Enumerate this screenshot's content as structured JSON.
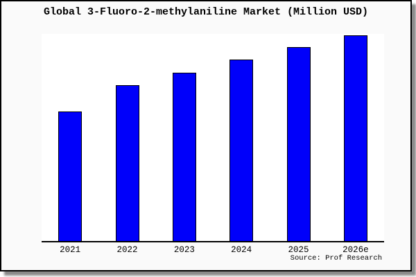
{
  "frame": {
    "background": "#fafafa",
    "border_color": "#000000",
    "shadow_color": "#8a8a8a",
    "plot_background": "#ffffff"
  },
  "chart_data": {
    "type": "bar",
    "title": "Global 3-Fluoro-2-methylaniline Market (Million USD)",
    "categories": [
      "2021",
      "2022",
      "2023",
      "2024",
      "2025",
      "2026e"
    ],
    "values": [
      62.9,
      75.5,
      81.6,
      88.0,
      94.0,
      100.0
    ],
    "values_unit": "relative (no y-axis scale shown)",
    "xlabel": "",
    "ylabel": "",
    "ylim": [
      0,
      100.5
    ],
    "grid": false,
    "legend": null,
    "y_axis_visible": false,
    "bar_color": "#0000fa",
    "bar_border_color": "#000000",
    "axis_color": "#000000",
    "source": "Source: Prof Research"
  }
}
